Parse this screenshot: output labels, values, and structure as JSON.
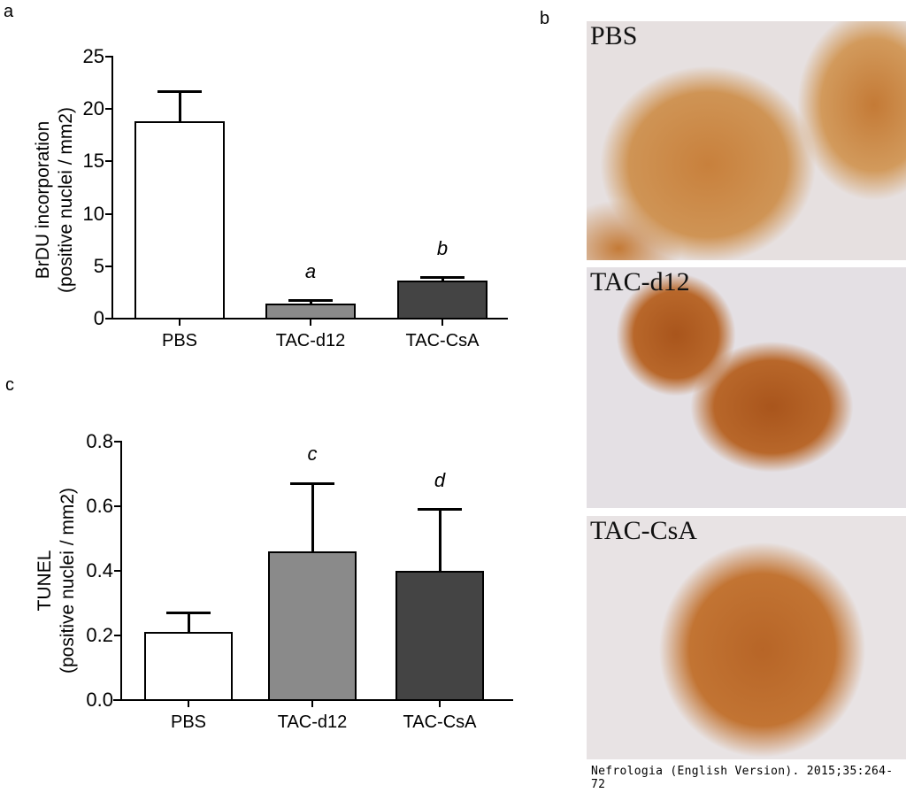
{
  "figure": {
    "panels": {
      "a": {
        "letter": "a"
      },
      "b": {
        "letter": "b"
      },
      "c": {
        "letter": "c"
      }
    },
    "citation": "Nefrologia (English Version). 2015;35:264-72"
  },
  "chart_data": [
    {
      "panel": "a",
      "type": "bar",
      "title": "",
      "xlabel": "",
      "ylabel": "BrDU incorporation (positive nuclei / mm2)",
      "ylabel_line1": "BrDU incorporation",
      "ylabel_line2": "(positive nuclei / mm2)",
      "categories": [
        "PBS",
        "TAC-d12",
        "TAC-CsA"
      ],
      "values": [
        18.8,
        1.4,
        3.6
      ],
      "error_upper": [
        21.7,
        1.7,
        3.9
      ],
      "bar_colors": [
        "#ffffff",
        "#8a8a8a",
        "#444444"
      ],
      "significance_labels": [
        "",
        "a",
        "b"
      ],
      "ylim": [
        0,
        25
      ],
      "yticks": [
        "0",
        "5",
        "10",
        "15",
        "20",
        "25"
      ],
      "grid": false,
      "legend": null
    },
    {
      "panel": "c",
      "type": "bar",
      "title": "",
      "xlabel": "",
      "ylabel": "TUNEL (positive nuclei / mm2)",
      "ylabel_line1": "TUNEL",
      "ylabel_line2": "(positive nuclei / mm2)",
      "categories": [
        "PBS",
        "TAC-d12",
        "TAC-CsA"
      ],
      "values": [
        0.21,
        0.46,
        0.4
      ],
      "error_upper": [
        0.27,
        0.67,
        0.59
      ],
      "bar_colors": [
        "#ffffff",
        "#8a8a8a",
        "#444444"
      ],
      "significance_labels": [
        "",
        "c",
        "d"
      ],
      "ylim": [
        0,
        0.8
      ],
      "yticks": [
        "0.0",
        "0.2",
        "0.4",
        "0.6",
        "0.8"
      ],
      "grid": false,
      "legend": null
    }
  ],
  "micrographs": [
    {
      "label": "PBS",
      "stain": "BrdU immunohistochemistry, pancreatic islet"
    },
    {
      "label": "TAC-d12",
      "stain": "BrdU immunohistochemistry, pancreatic islet"
    },
    {
      "label": "TAC-CsA",
      "stain": "BrdU immunohistochemistry, pancreatic islet"
    }
  ]
}
